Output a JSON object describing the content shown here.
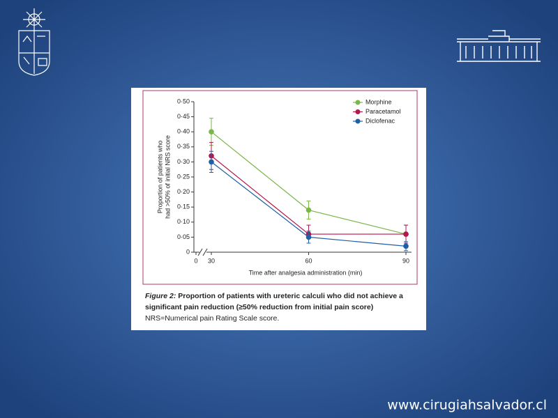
{
  "chart_data": {
    "type": "line",
    "y_label_lines": [
      "Proportion of patients who",
      "had >50% of initial NRS score"
    ],
    "x_label": "Time after analgesia administration (min)",
    "x": [
      30,
      60,
      90
    ],
    "xlim": [
      0,
      90
    ],
    "xticks": [
      0,
      30,
      60,
      90
    ],
    "x_axis_break": true,
    "ylim": [
      0,
      0.5
    ],
    "yticks": [
      0,
      {
        "value": 0.05,
        "label": "0·05"
      },
      {
        "value": 0.1,
        "label": "0·10"
      },
      {
        "value": 0.15,
        "label": "0·15"
      },
      {
        "value": 0.2,
        "label": "0·20"
      },
      {
        "value": 0.25,
        "label": "0·25"
      },
      {
        "value": 0.3,
        "label": "0·30"
      },
      {
        "value": 0.35,
        "label": "0·35"
      },
      {
        "value": 0.4,
        "label": "0·40"
      },
      {
        "value": 0.45,
        "label": "0·45"
      },
      {
        "value": 0.5,
        "label": "0·50"
      }
    ],
    "grid": false,
    "legend": "upper right",
    "series": [
      {
        "name": "Morphine",
        "color": "#7ab648",
        "values": [
          0.4,
          0.14,
          0.06
        ],
        "errors": [
          0.045,
          0.03,
          0.03
        ]
      },
      {
        "name": "Paracetamol",
        "color": "#b5164b",
        "values": [
          0.32,
          0.06,
          0.06
        ],
        "errors": [
          0.045,
          0.03,
          0.03
        ]
      },
      {
        "name": "Diclofenac",
        "color": "#1f5fa6",
        "values": [
          0.3,
          0.05,
          0.02
        ],
        "errors": [
          0.035,
          0.02,
          0.015
        ]
      }
    ],
    "caption_label": "Figure 2:",
    "caption_title_lines": [
      " Proportion of patients with ureteric calculi who did not achieve a",
      "significant pain reduction (≥50% reduction from initial pain score)"
    ],
    "caption_note": "NRS=Numerical pain Rating Scale score."
  },
  "slide": {
    "website": "www.cirugiahsalvador.cl"
  }
}
